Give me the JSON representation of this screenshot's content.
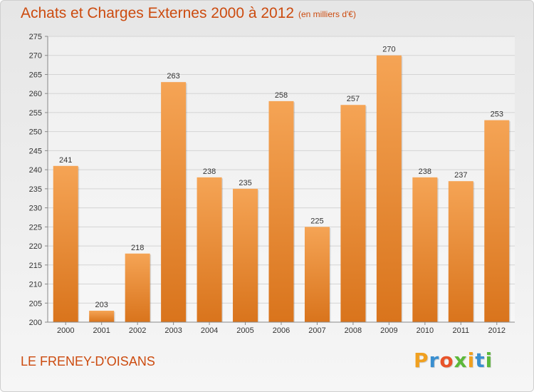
{
  "title": "Achats et Charges Externes 2000 à 2012",
  "subtitle": "(en milliers d'€)",
  "commune": "LE FRENEY-D'OISANS",
  "logo": {
    "letters": [
      "P",
      "r",
      "o",
      "x",
      "i",
      "t",
      "i"
    ],
    "colors": [
      "#f0a020",
      "#3a8fd0",
      "#e8542a",
      "#5cb83a",
      "#f0a020",
      "#3a8fd0",
      "#5cb83a"
    ]
  },
  "colors": {
    "accent": "#cc4b0f",
    "bar_top": "#f5a455",
    "bar_bottom": "#d9741c"
  },
  "chart_data": {
    "type": "bar",
    "categories": [
      "2000",
      "2001",
      "2002",
      "2003",
      "2004",
      "2005",
      "2006",
      "2007",
      "2008",
      "2009",
      "2010",
      "2011",
      "2012"
    ],
    "values": [
      241,
      203,
      218,
      263,
      238,
      235,
      258,
      225,
      257,
      270,
      238,
      237,
      253
    ],
    "ylim": [
      200,
      275
    ],
    "yticks": [
      200,
      205,
      210,
      215,
      220,
      225,
      230,
      235,
      240,
      245,
      250,
      255,
      260,
      265,
      270,
      275
    ],
    "grid": true,
    "data_labels": true
  }
}
